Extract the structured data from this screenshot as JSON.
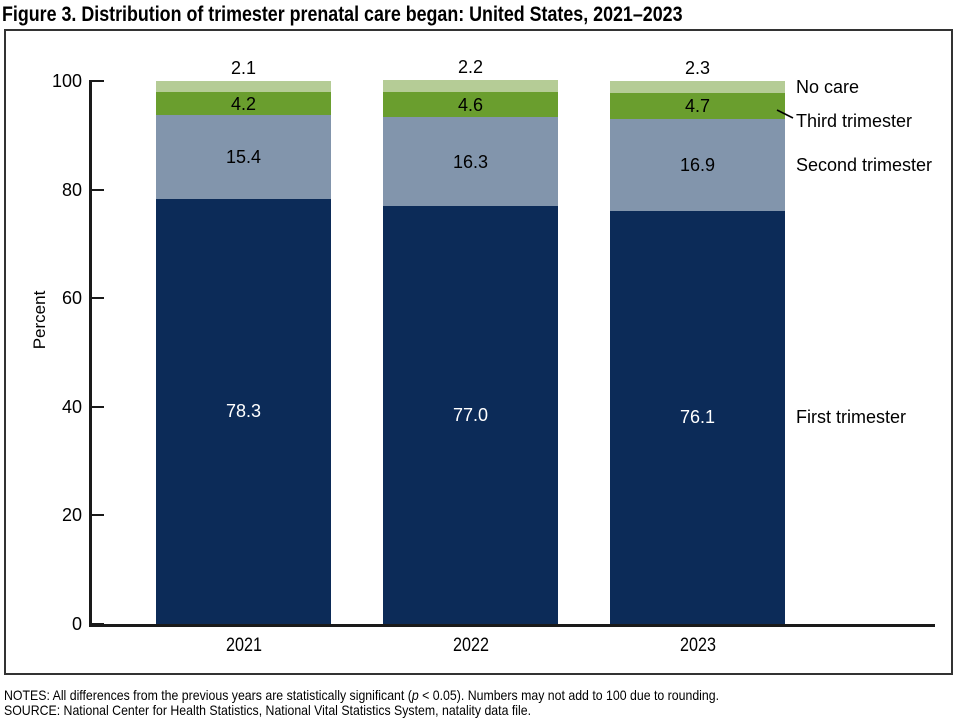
{
  "figure": {
    "notes_pre": "NOTES: All differences from the previous years are statistically significant (",
    "notes_p": "p",
    "notes_post": " < 0.05). Numbers may not add to 100 due to rounding.",
    "source": "SOURCE: National Center for Health Statistics, National Vital Statistics System, natality data file."
  },
  "chart_data": {
    "type": "bar",
    "stacked": true,
    "title": "Figure 3. Distribution of trimester prenatal care began: United States, 2021–2023",
    "categories": [
      "2021",
      "2022",
      "2023"
    ],
    "series": [
      {
        "name": "First trimester",
        "color": "#0c2b58",
        "label_color": "#ffffff",
        "values": [
          78.3,
          77.0,
          76.1
        ]
      },
      {
        "name": "Second trimester",
        "color": "#8295ac",
        "label_color": "#000000",
        "values": [
          15.4,
          16.3,
          16.9
        ]
      },
      {
        "name": "Third trimester",
        "color": "#6a9e2e",
        "label_color": "#000000",
        "values": [
          4.2,
          4.6,
          4.7
        ]
      },
      {
        "name": "No care",
        "color": "#b5cc96",
        "label_color": "#000000",
        "values": [
          2.1,
          2.2,
          2.3
        ]
      }
    ],
    "xlabel": "",
    "ylabel": "Percent",
    "ylim": [
      0,
      100
    ],
    "yticks": [
      0,
      20,
      40,
      60,
      80,
      100
    ],
    "grid": false,
    "legend_position": "right-inline"
  }
}
